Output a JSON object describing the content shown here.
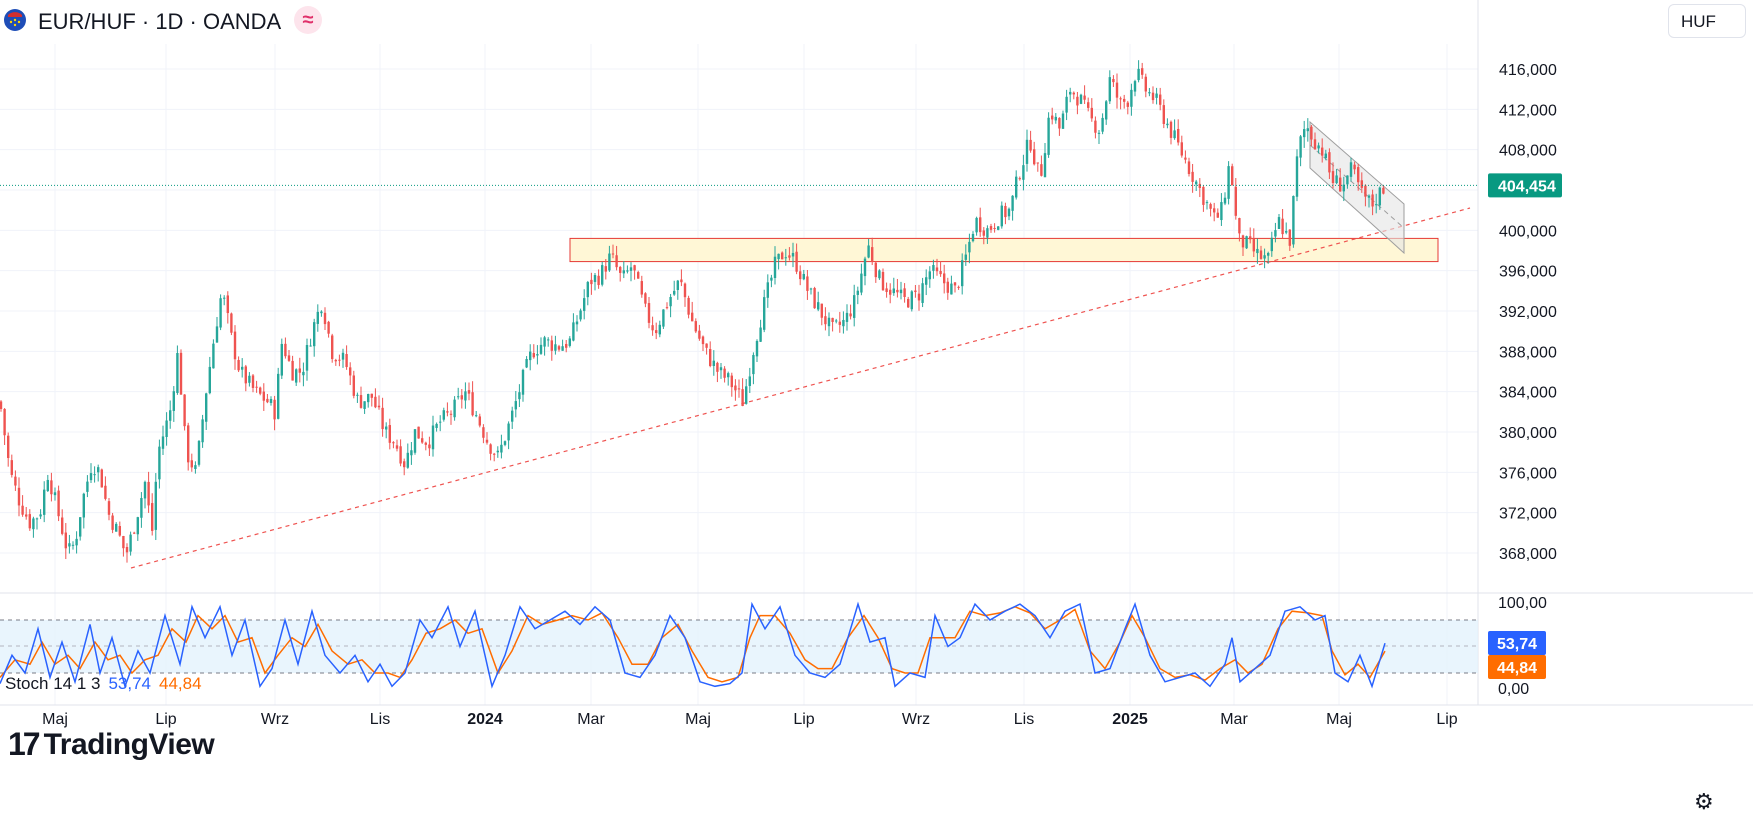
{
  "header": {
    "title": "EUR/HUF · 1D · OANDA",
    "currency_button": "HUF",
    "flag_icon": "eu-hu-flag-icon",
    "indicator_icon": "wave-icon"
  },
  "colors": {
    "up": "#26a69a",
    "down": "#ef5350",
    "price_badge": "#089981",
    "stoch_k": "#2962ff",
    "stoch_d": "#ff6d00",
    "zone_fill": "#fff7d6",
    "zone_border": "#e53935",
    "trendline": "#ef5350",
    "channel_fill": "#e5e5e5"
  },
  "stoch": {
    "label": "Stoch 14 1 3",
    "k_value": "53,74",
    "d_value": "44,84",
    "axis_labels": [
      "100,00",
      "0,00"
    ]
  },
  "branding": {
    "logo_mark": "17",
    "logo_text": "TradingView"
  },
  "settings_icon": "gear-icon",
  "chart_data": {
    "type": "candlestick",
    "instrument": "EUR/HUF",
    "timeframe": "1D",
    "source": "OANDA",
    "last_price": "404,454",
    "y_axis": {
      "min": 364000,
      "max": 420000,
      "ticks": [
        416000,
        412000,
        408000,
        404000,
        400000,
        396000,
        392000,
        388000,
        384000,
        380000,
        376000,
        372000,
        368000
      ],
      "tick_labels": [
        "416,000",
        "412,000",
        "408,000",
        "",
        "400,000",
        "396,000",
        "392,000",
        "388,000",
        "384,000",
        "380,000",
        "376,000",
        "372,000",
        "368,000"
      ]
    },
    "x_axis": {
      "labels": [
        "Maj",
        "Lip",
        "Wrz",
        "Lis",
        "2024",
        "Mar",
        "Maj",
        "Lip",
        "Wrz",
        "Lis",
        "2025",
        "Mar",
        "Maj",
        "Lip"
      ],
      "bold": [
        false,
        false,
        false,
        false,
        true,
        false,
        false,
        false,
        false,
        false,
        true,
        false,
        false,
        false
      ]
    },
    "price_path": [
      [
        0,
        383000
      ],
      [
        10,
        376000
      ],
      [
        20,
        373000
      ],
      [
        30,
        371000
      ],
      [
        40,
        372000
      ],
      [
        48,
        376000
      ],
      [
        58,
        372000
      ],
      [
        68,
        368000
      ],
      [
        75,
        369000
      ],
      [
        82,
        373000
      ],
      [
        92,
        377000
      ],
      [
        100,
        376000
      ],
      [
        108,
        372000
      ],
      [
        118,
        370000
      ],
      [
        126,
        367800
      ],
      [
        135,
        371000
      ],
      [
        145,
        375000
      ],
      [
        152,
        370000
      ],
      [
        158,
        378000
      ],
      [
        170,
        382000
      ],
      [
        178,
        388000
      ],
      [
        186,
        378000
      ],
      [
        196,
        376000
      ],
      [
        206,
        384000
      ],
      [
        215,
        390000
      ],
      [
        222,
        394000
      ],
      [
        232,
        389000
      ],
      [
        240,
        386000
      ],
      [
        255,
        384000
      ],
      [
        268,
        383000
      ],
      [
        275,
        382000
      ],
      [
        282,
        389000
      ],
      [
        292,
        386000
      ],
      [
        302,
        386000
      ],
      [
        312,
        390000
      ],
      [
        322,
        393000
      ],
      [
        332,
        388000
      ],
      [
        345,
        387000
      ],
      [
        358,
        383000
      ],
      [
        372,
        383500
      ],
      [
        385,
        380000
      ],
      [
        395,
        379000
      ],
      [
        405,
        376800
      ],
      [
        415,
        380000
      ],
      [
        428,
        379000
      ],
      [
        440,
        381000
      ],
      [
        452,
        382000
      ],
      [
        465,
        384000
      ],
      [
        475,
        382000
      ],
      [
        488,
        379000
      ],
      [
        498,
        377500
      ],
      [
        510,
        381000
      ],
      [
        522,
        385000
      ],
      [
        532,
        388000
      ],
      [
        545,
        389000
      ],
      [
        558,
        388500
      ],
      [
        570,
        389000
      ],
      [
        580,
        392000
      ],
      [
        590,
        395000
      ],
      [
        600,
        395500
      ],
      [
        611,
        397500
      ],
      [
        622,
        395000
      ],
      [
        632,
        396500
      ],
      [
        645,
        392000
      ],
      [
        655,
        390000
      ],
      [
        668,
        393000
      ],
      [
        680,
        395000
      ],
      [
        692,
        391000
      ],
      [
        705,
        388000
      ],
      [
        718,
        386000
      ],
      [
        730,
        385000
      ],
      [
        743,
        383000
      ],
      [
        755,
        389000
      ],
      [
        765,
        393000
      ],
      [
        775,
        396500
      ],
      [
        785,
        398000
      ],
      [
        795,
        397000
      ],
      [
        808,
        394000
      ],
      [
        820,
        392000
      ],
      [
        832,
        390000
      ],
      [
        845,
        391000
      ],
      [
        855,
        393000
      ],
      [
        868,
        398500
      ],
      [
        880,
        395000
      ],
      [
        892,
        394000
      ],
      [
        905,
        393000
      ],
      [
        918,
        393500
      ],
      [
        930,
        396000
      ],
      [
        942,
        395000
      ],
      [
        955,
        394000
      ],
      [
        965,
        397000
      ],
      [
        975,
        401000
      ],
      [
        988,
        400000
      ],
      [
        1000,
        401500
      ],
      [
        1010,
        402000
      ],
      [
        1020,
        406000
      ],
      [
        1030,
        409000
      ],
      [
        1040,
        405000
      ],
      [
        1050,
        412000
      ],
      [
        1060,
        410000
      ],
      [
        1070,
        414000
      ],
      [
        1080,
        413000
      ],
      [
        1090,
        411000
      ],
      [
        1100,
        410000
      ],
      [
        1110,
        415000
      ],
      [
        1120,
        412500
      ],
      [
        1128,
        413000
      ],
      [
        1136,
        415800
      ],
      [
        1145,
        414000
      ],
      [
        1155,
        413000
      ],
      [
        1165,
        411000
      ],
      [
        1175,
        409000
      ],
      [
        1185,
        407000
      ],
      [
        1195,
        405000
      ],
      [
        1205,
        403000
      ],
      [
        1215,
        401000
      ],
      [
        1222,
        402000
      ],
      [
        1230,
        407000
      ],
      [
        1238,
        399000
      ],
      [
        1248,
        398500
      ],
      [
        1258,
        397500
      ],
      [
        1268,
        397000
      ],
      [
        1278,
        401000
      ],
      [
        1290,
        399000
      ],
      [
        1298,
        408000
      ],
      [
        1306,
        410500
      ],
      [
        1314,
        409000
      ],
      [
        1322,
        408000
      ],
      [
        1332,
        405000
      ],
      [
        1342,
        404500
      ],
      [
        1352,
        406000
      ],
      [
        1362,
        403500
      ],
      [
        1372,
        402500
      ],
      [
        1378,
        403500
      ],
      [
        1385,
        404454
      ]
    ],
    "stoch_k_path": [
      [
        0,
        8
      ],
      [
        12,
        40
      ],
      [
        25,
        20
      ],
      [
        38,
        70
      ],
      [
        50,
        15
      ],
      [
        62,
        55
      ],
      [
        75,
        10
      ],
      [
        90,
        75
      ],
      [
        100,
        20
      ],
      [
        112,
        60
      ],
      [
        125,
        5
      ],
      [
        138,
        45
      ],
      [
        150,
        20
      ],
      [
        165,
        85
      ],
      [
        180,
        30
      ],
      [
        192,
        95
      ],
      [
        205,
        60
      ],
      [
        220,
        95
      ],
      [
        232,
        40
      ],
      [
        245,
        80
      ],
      [
        260,
        5
      ],
      [
        272,
        25
      ],
      [
        285,
        80
      ],
      [
        298,
        30
      ],
      [
        312,
        90
      ],
      [
        325,
        40
      ],
      [
        340,
        20
      ],
      [
        355,
        40
      ],
      [
        368,
        10
      ],
      [
        380,
        30
      ],
      [
        392,
        5
      ],
      [
        405,
        20
      ],
      [
        420,
        80
      ],
      [
        432,
        60
      ],
      [
        448,
        95
      ],
      [
        460,
        50
      ],
      [
        475,
        90
      ],
      [
        492,
        5
      ],
      [
        505,
        40
      ],
      [
        520,
        95
      ],
      [
        535,
        70
      ],
      [
        550,
        80
      ],
      [
        565,
        90
      ],
      [
        580,
        75
      ],
      [
        595,
        95
      ],
      [
        610,
        80
      ],
      [
        625,
        20
      ],
      [
        640,
        15
      ],
      [
        655,
        40
      ],
      [
        670,
        85
      ],
      [
        685,
        60
      ],
      [
        700,
        10
      ],
      [
        715,
        5
      ],
      [
        730,
        8
      ],
      [
        742,
        20
      ],
      [
        752,
        98
      ],
      [
        765,
        70
      ],
      [
        780,
        95
      ],
      [
        795,
        40
      ],
      [
        810,
        20
      ],
      [
        825,
        15
      ],
      [
        840,
        30
      ],
      [
        858,
        98
      ],
      [
        870,
        55
      ],
      [
        885,
        60
      ],
      [
        895,
        5
      ],
      [
        910,
        20
      ],
      [
        925,
        15
      ],
      [
        935,
        85
      ],
      [
        948,
        50
      ],
      [
        960,
        60
      ],
      [
        975,
        98
      ],
      [
        990,
        80
      ],
      [
        1005,
        90
      ],
      [
        1020,
        98
      ],
      [
        1035,
        85
      ],
      [
        1050,
        60
      ],
      [
        1065,
        90
      ],
      [
        1080,
        98
      ],
      [
        1095,
        20
      ],
      [
        1110,
        25
      ],
      [
        1125,
        70
      ],
      [
        1135,
        98
      ],
      [
        1150,
        40
      ],
      [
        1165,
        10
      ],
      [
        1180,
        15
      ],
      [
        1195,
        20
      ],
      [
        1210,
        5
      ],
      [
        1225,
        30
      ],
      [
        1232,
        60
      ],
      [
        1240,
        10
      ],
      [
        1255,
        25
      ],
      [
        1270,
        40
      ],
      [
        1285,
        90
      ],
      [
        1300,
        95
      ],
      [
        1315,
        80
      ],
      [
        1325,
        85
      ],
      [
        1335,
        20
      ],
      [
        1348,
        10
      ],
      [
        1360,
        40
      ],
      [
        1372,
        5
      ],
      [
        1385,
        53.74
      ]
    ],
    "stoch_d_path": [
      [
        0,
        15
      ],
      [
        15,
        35
      ],
      [
        30,
        30
      ],
      [
        42,
        55
      ],
      [
        55,
        30
      ],
      [
        68,
        40
      ],
      [
        80,
        25
      ],
      [
        95,
        55
      ],
      [
        108,
        35
      ],
      [
        120,
        40
      ],
      [
        132,
        20
      ],
      [
        145,
        35
      ],
      [
        158,
        40
      ],
      [
        172,
        70
      ],
      [
        186,
        55
      ],
      [
        198,
        85
      ],
      [
        212,
        70
      ],
      [
        225,
        85
      ],
      [
        238,
        55
      ],
      [
        252,
        60
      ],
      [
        265,
        20
      ],
      [
        278,
        40
      ],
      [
        292,
        60
      ],
      [
        305,
        50
      ],
      [
        318,
        75
      ],
      [
        332,
        45
      ],
      [
        348,
        30
      ],
      [
        362,
        35
      ],
      [
        375,
        20
      ],
      [
        388,
        20
      ],
      [
        400,
        15
      ],
      [
        412,
        35
      ],
      [
        426,
        65
      ],
      [
        440,
        70
      ],
      [
        455,
        80
      ],
      [
        468,
        65
      ],
      [
        482,
        70
      ],
      [
        498,
        20
      ],
      [
        512,
        45
      ],
      [
        528,
        85
      ],
      [
        542,
        75
      ],
      [
        558,
        80
      ],
      [
        572,
        85
      ],
      [
        588,
        80
      ],
      [
        602,
        88
      ],
      [
        618,
        60
      ],
      [
        632,
        30
      ],
      [
        648,
        30
      ],
      [
        662,
        60
      ],
      [
        678,
        75
      ],
      [
        692,
        45
      ],
      [
        708,
        15
      ],
      [
        722,
        10
      ],
      [
        738,
        15
      ],
      [
        750,
        60
      ],
      [
        760,
        85
      ],
      [
        775,
        85
      ],
      [
        790,
        65
      ],
      [
        805,
        35
      ],
      [
        818,
        25
      ],
      [
        832,
        25
      ],
      [
        848,
        60
      ],
      [
        864,
        85
      ],
      [
        878,
        60
      ],
      [
        892,
        25
      ],
      [
        905,
        20
      ],
      [
        918,
        20
      ],
      [
        930,
        60
      ],
      [
        942,
        60
      ],
      [
        955,
        60
      ],
      [
        970,
        90
      ],
      [
        985,
        85
      ],
      [
        1000,
        88
      ],
      [
        1015,
        95
      ],
      [
        1030,
        88
      ],
      [
        1045,
        70
      ],
      [
        1060,
        80
      ],
      [
        1075,
        92
      ],
      [
        1090,
        45
      ],
      [
        1105,
        25
      ],
      [
        1120,
        55
      ],
      [
        1132,
        85
      ],
      [
        1145,
        60
      ],
      [
        1160,
        25
      ],
      [
        1175,
        15
      ],
      [
        1190,
        18
      ],
      [
        1205,
        12
      ],
      [
        1220,
        25
      ],
      [
        1235,
        35
      ],
      [
        1248,
        20
      ],
      [
        1262,
        30
      ],
      [
        1278,
        70
      ],
      [
        1292,
        90
      ],
      [
        1308,
        88
      ],
      [
        1322,
        85
      ],
      [
        1332,
        45
      ],
      [
        1345,
        18
      ],
      [
        1358,
        30
      ],
      [
        1370,
        15
      ],
      [
        1385,
        44.84
      ]
    ]
  }
}
